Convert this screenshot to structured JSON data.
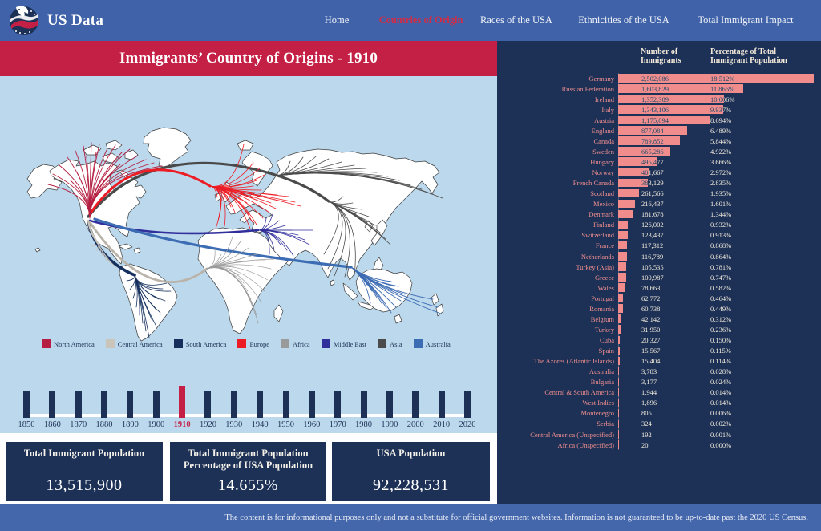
{
  "brand": "US Data",
  "nav": {
    "items": [
      {
        "label": "Home",
        "active": false
      },
      {
        "label": "Countries of Origin",
        "active": true
      },
      {
        "label": "Races of the USA",
        "active": false
      },
      {
        "label": "Ethnicities of the USA",
        "active": false
      },
      {
        "label": "Total Immigrant Impact",
        "active": false
      }
    ]
  },
  "title": "Immigrants’ Country of Origins - 1910",
  "chart_data": {
    "type": "bar",
    "columns": [
      "Number of Immigrants",
      "Percentage of Total Immigrant Population"
    ],
    "rows": [
      {
        "country": "Germany",
        "immigrants": "2,502,086",
        "percentage": "18.512%"
      },
      {
        "country": "Russian Federation",
        "immigrants": "1,603,829",
        "percentage": "11.866%"
      },
      {
        "country": "Ireland",
        "immigrants": "1,352,389",
        "percentage": "10.006%"
      },
      {
        "country": "Italy",
        "immigrants": "1,343,106",
        "percentage": "9.937%"
      },
      {
        "country": "Austria",
        "immigrants": "1,175,094",
        "percentage": "8.694%"
      },
      {
        "country": "England",
        "immigrants": "877,084",
        "percentage": "6.489%"
      },
      {
        "country": "Canada",
        "immigrants": "789,852",
        "percentage": "5.844%"
      },
      {
        "country": "Sweden",
        "immigrants": "665,286",
        "percentage": "4.922%"
      },
      {
        "country": "Hungary",
        "immigrants": "495,477",
        "percentage": "3.666%"
      },
      {
        "country": "Norway",
        "immigrants": "401,667",
        "percentage": "2.972%"
      },
      {
        "country": "French Canada",
        "immigrants": "383,129",
        "percentage": "2.835%"
      },
      {
        "country": "Scotland",
        "immigrants": "261,566",
        "percentage": "1.935%"
      },
      {
        "country": "Mexico",
        "immigrants": "216,437",
        "percentage": "1.601%"
      },
      {
        "country": "Denmark",
        "immigrants": "181,678",
        "percentage": "1.344%"
      },
      {
        "country": "Finland",
        "immigrants": "126,002",
        "percentage": "0.932%"
      },
      {
        "country": "Switzerland",
        "immigrants": "123,437",
        "percentage": "0.913%"
      },
      {
        "country": "France",
        "immigrants": "117,312",
        "percentage": "0.868%"
      },
      {
        "country": "Netherlands",
        "immigrants": "116,789",
        "percentage": "0.864%"
      },
      {
        "country": "Turkey (Asia)",
        "immigrants": "105,535",
        "percentage": "0.781%"
      },
      {
        "country": "Greece",
        "immigrants": "100,987",
        "percentage": "0.747%"
      },
      {
        "country": "Wales",
        "immigrants": "78,663",
        "percentage": "0.582%"
      },
      {
        "country": "Portugal",
        "immigrants": "62,772",
        "percentage": "0.464%"
      },
      {
        "country": "Romania",
        "immigrants": "60,738",
        "percentage": "0.449%"
      },
      {
        "country": "Belgium",
        "immigrants": "42,142",
        "percentage": "0.312%"
      },
      {
        "country": "Turkey",
        "immigrants": "31,950",
        "percentage": "0.236%"
      },
      {
        "country": "Cuba",
        "immigrants": "20,327",
        "percentage": "0.150%"
      },
      {
        "country": "Spain",
        "immigrants": "15,567",
        "percentage": "0.115%"
      },
      {
        "country": "The Azores (Atlantic Islands)",
        "immigrants": "15,404",
        "percentage": "0.114%"
      },
      {
        "country": "Australia",
        "immigrants": "3,783",
        "percentage": "0.028%"
      },
      {
        "country": "Bulgaria",
        "immigrants": "3,177",
        "percentage": "0.024%"
      },
      {
        "country": "Central & South America",
        "immigrants": "1,944",
        "percentage": "0.014%"
      },
      {
        "country": "West Indies",
        "immigrants": "1,896",
        "percentage": "0.014%"
      },
      {
        "country": "Montenegro",
        "immigrants": "805",
        "percentage": "0.006%"
      },
      {
        "country": "Serbia",
        "immigrants": "324",
        "percentage": "0.002%"
      },
      {
        "country": "Central America (Unspecified)",
        "immigrants": "192",
        "percentage": "0.001%"
      },
      {
        "country": "Africa (Unspecified)",
        "immigrants": "20",
        "percentage": "0.000%"
      }
    ]
  },
  "legend": [
    {
      "label": "North America",
      "color": "#b51f41"
    },
    {
      "label": "Central America",
      "color": "#cbc4ba"
    },
    {
      "label": "South America",
      "color": "#16305e"
    },
    {
      "label": "Europe",
      "color": "#ed1c24"
    },
    {
      "label": "Africa",
      "color": "#9a9a9a"
    },
    {
      "label": "Middle East",
      "color": "#312f9b"
    },
    {
      "label": "Asia",
      "color": "#4a4a4a"
    },
    {
      "label": "Australia",
      "color": "#3c6cb4"
    }
  ],
  "timeline": {
    "years": [
      "1850",
      "1860",
      "1870",
      "1880",
      "1890",
      "1900",
      "1910",
      "1920",
      "1930",
      "1940",
      "1950",
      "1960",
      "1970",
      "1980",
      "1990",
      "2000",
      "2010",
      "2020"
    ],
    "selected": "1910"
  },
  "stats": [
    {
      "label": "Total Immigrant Population",
      "value": "13,515,900"
    },
    {
      "label": "Total Immigrant Population Percentage of USA Population",
      "value": "14.655%"
    },
    {
      "label": "USA Population",
      "value": "92,228,531"
    }
  ],
  "footer": "The content is for informational purposes only and not a substitute for official government websites. Information is not guaranteed to be up-to-date past the 2020 US Census."
}
